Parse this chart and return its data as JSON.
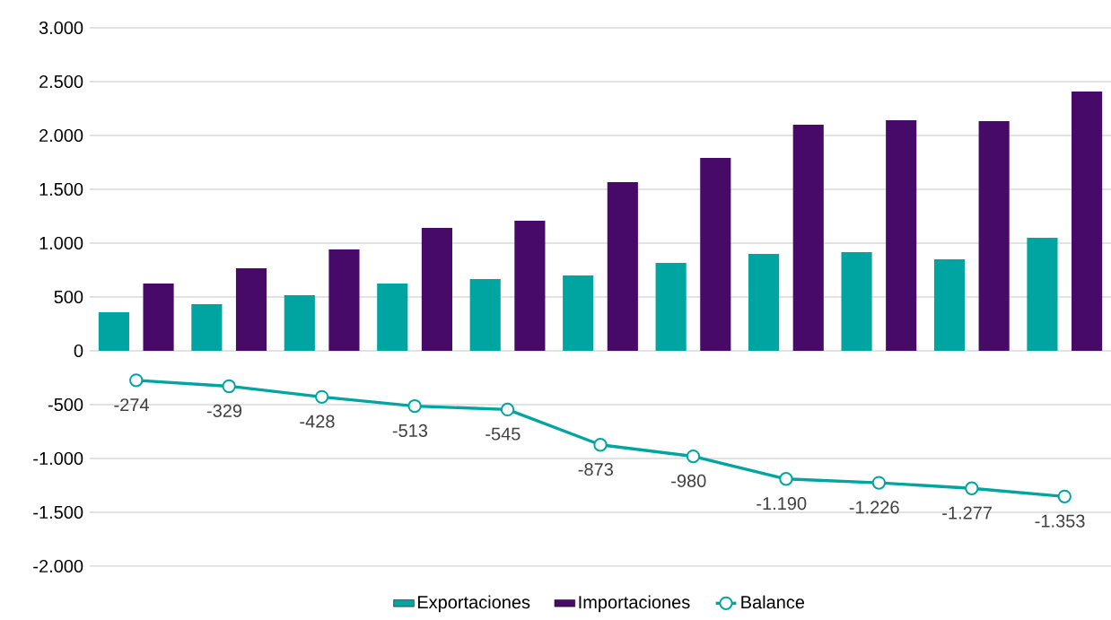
{
  "chart_data": {
    "type": "bar",
    "categories": [
      null,
      null,
      null,
      null,
      null,
      null,
      null,
      null,
      null,
      null,
      null
    ],
    "series": [
      {
        "name": "Exportaciones",
        "color": "#00a4a0",
        "values": [
          358,
          433,
          517,
          625,
          667,
          700,
          817,
          900,
          917,
          850,
          1050
        ]
      },
      {
        "name": "Importaciones",
        "color": "#470a68",
        "values": [
          625,
          767,
          942,
          1142,
          1208,
          1567,
          1792,
          2100,
          2142,
          2133,
          2408
        ]
      },
      {
        "name": "Balance",
        "type": "line",
        "color": "#00a4a0",
        "marker": "circle",
        "values": [
          -274,
          -329,
          -428,
          -513,
          -545,
          -873,
          -980,
          -1190,
          -1226,
          -1277,
          -1353
        ],
        "value_labels": [
          "-274",
          "-329",
          "-428",
          "-513",
          "-545",
          "-873",
          "-980",
          "-1.190",
          "-1.226",
          "-1.277",
          "-1.353"
        ]
      }
    ],
    "ylim": [
      -2000,
      3000
    ],
    "yticks": [
      {
        "value": -2000,
        "label": "-2.000"
      },
      {
        "value": -1500,
        "label": "-1.500"
      },
      {
        "value": -1000,
        "label": "-1.000"
      },
      {
        "value": -500,
        "label": "-500"
      },
      {
        "value": 0,
        "label": "0"
      },
      {
        "value": 500,
        "label": "500"
      },
      {
        "value": 1000,
        "label": "1.000"
      },
      {
        "value": 1500,
        "label": "1.500"
      },
      {
        "value": 2000,
        "label": "2.000"
      },
      {
        "value": 2500,
        "label": "2.500"
      },
      {
        "value": 3000,
        "label": "3.000"
      }
    ],
    "grid": true,
    "legend": "bottom",
    "tick_labels": "y"
  }
}
